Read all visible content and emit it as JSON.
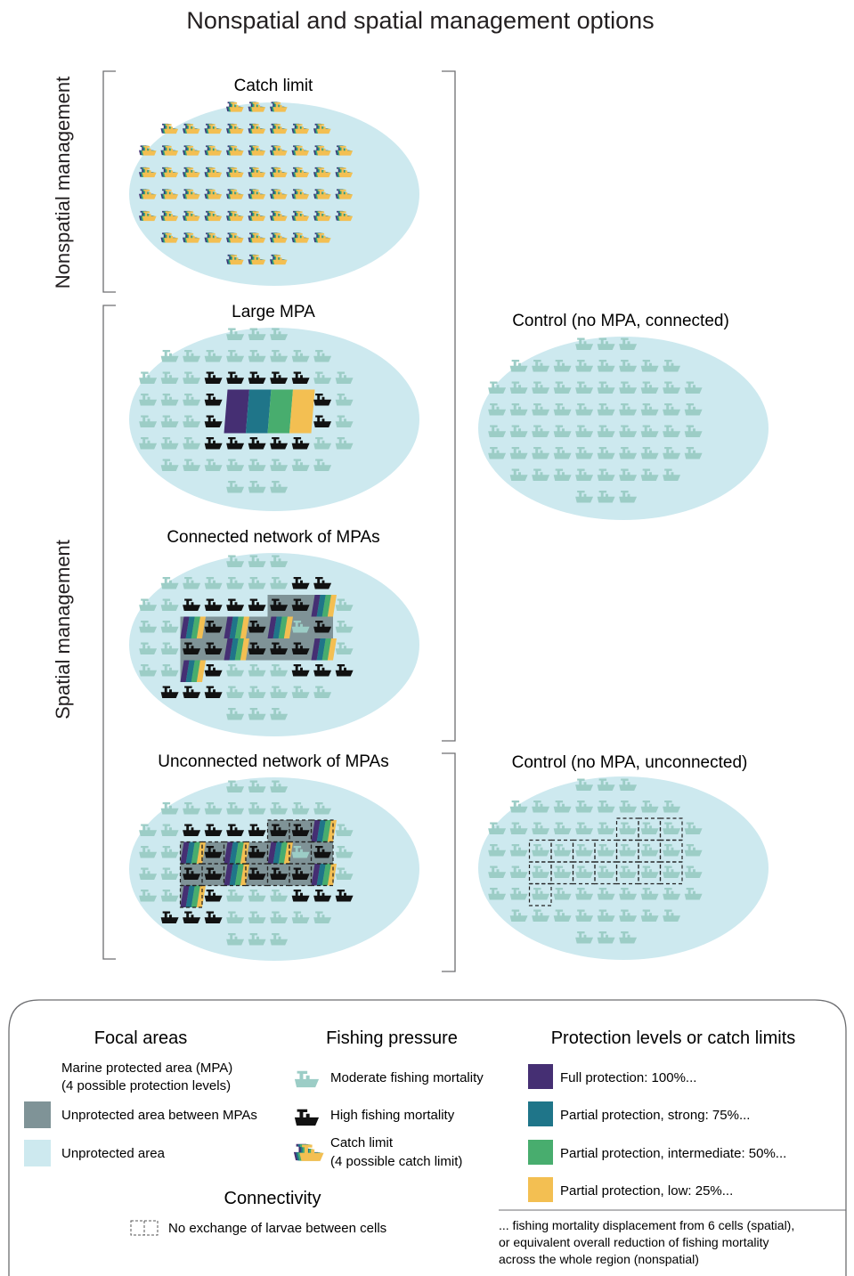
{
  "title": "Nonspatial and spatial management options",
  "side_labels": {
    "nonspatial": "Nonspatial management",
    "spatial": "Spatial management"
  },
  "panels": {
    "catch_limit": "Catch limit",
    "large_mpa": "Large MPA",
    "connected_network": "Connected network of MPAs",
    "unconnected_network": "Unconnected network of MPAs",
    "control_connected": "Control (no MPA, connected)",
    "control_unconnected": "Control (no MPA, unconnected)"
  },
  "colors": {
    "ocean": "#cde9ef",
    "boat_moderate": "#9ccdc6",
    "boat_high": "#111111",
    "between_mpa": "#7f9397",
    "full": "#452f73",
    "strong": "#1f7589",
    "intermediate": "#48ad6e",
    "low": "#f3bf52"
  },
  "legend": {
    "focal": {
      "heading": "Focal areas",
      "mpa_line1": "Marine protected area (MPA)",
      "mpa_line2": "(4 possible protection levels)",
      "between": "Unprotected area between MPAs",
      "unprotected": "Unprotected area"
    },
    "fishing": {
      "heading": "Fishing pressure",
      "moderate": "Moderate fishing mortality",
      "high": "High fishing mortality",
      "catch_line1": "Catch limit",
      "catch_line2": "(4 possible catch limit)"
    },
    "connectivity": {
      "heading": "Connectivity",
      "no_exchange": "No exchange of larvae between cells"
    },
    "protection": {
      "heading": "Protection levels or catch limits",
      "full": "Full protection: 100%...",
      "strong": "Partial protection, strong: 75%...",
      "intermediate": "Partial protection, intermediate: 50%...",
      "low": "Partial protection, low: 25%...",
      "note_line1": "... fishing mortality displacement from 6 cells (spatial),",
      "note_line2": "or equivalent overall reduction of fishing mortality",
      "note_line3": "across the whole region (nonspatial)"
    }
  }
}
